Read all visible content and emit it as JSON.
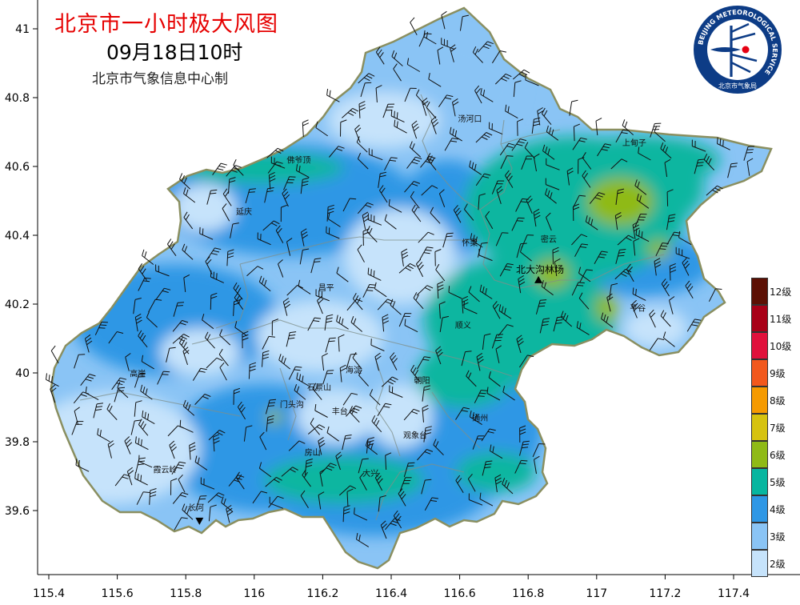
{
  "header": {
    "title": "北京市一小时极大风图",
    "time": "09月18日10时",
    "source": "北京市气象信息中心制"
  },
  "logo": {
    "ring_text": "BEIJING METEOROLOGICAL SERVICE",
    "cn_text": "北京市气象局"
  },
  "colors": {
    "level_2": "#c6e3fb",
    "level_3": "#8ac4f5",
    "level_4": "#2e97e5",
    "level_5": "#07b6a0",
    "level_6": "#8fba16",
    "level_7": "#d6c20f",
    "level_8": "#f59a00",
    "level_9": "#f2581c",
    "level_10": "#e0113c",
    "level_11": "#a80017",
    "level_12": "#5c1004",
    "border": "#8a8f60"
  },
  "legend": [
    {
      "label": "12级",
      "color": "#5c1004"
    },
    {
      "label": "11级",
      "color": "#a80017"
    },
    {
      "label": "10级",
      "color": "#e0113c"
    },
    {
      "label": "9级",
      "color": "#f2581c"
    },
    {
      "label": "8级",
      "color": "#f59a00"
    },
    {
      "label": "7级",
      "color": "#d6c20f"
    },
    {
      "label": "6级",
      "color": "#8fba16"
    },
    {
      "label": "5级",
      "color": "#07b6a0"
    },
    {
      "label": "4级",
      "color": "#2e97e5"
    },
    {
      "label": "3级",
      "color": "#8ac4f5"
    },
    {
      "label": "2级",
      "color": "#c6e3fb"
    }
  ],
  "axes": {
    "x_ticks": [
      "115.4",
      "115.6",
      "115.8",
      "116",
      "116.2",
      "116.4",
      "116.6",
      "116.8",
      "117",
      "117.2",
      "117.4"
    ],
    "y_ticks": [
      "41",
      "40.8",
      "40.6",
      "40.4",
      "40.2",
      "40",
      "39.8",
      "39.6"
    ]
  },
  "places": [
    {
      "name": "汤河口",
      "lon": 116.63,
      "lat": 40.73
    },
    {
      "name": "上甸子",
      "lon": 117.11,
      "lat": 40.66
    },
    {
      "name": "佛爷顶",
      "lon": 116.13,
      "lat": 40.61
    },
    {
      "name": "延庆",
      "lon": 115.97,
      "lat": 40.46
    },
    {
      "name": "密云",
      "lon": 116.86,
      "lat": 40.38
    },
    {
      "name": "怀柔",
      "lon": 116.63,
      "lat": 40.37
    },
    {
      "name": "昌平",
      "lon": 116.21,
      "lat": 40.24
    },
    {
      "name": "平谷",
      "lon": 117.12,
      "lat": 40.18
    },
    {
      "name": "顺义",
      "lon": 116.61,
      "lat": 40.13
    },
    {
      "name": "高崖",
      "lon": 115.66,
      "lat": 39.99
    },
    {
      "name": "海淀",
      "lon": 116.29,
      "lat": 40.0
    },
    {
      "name": "朝阳",
      "lon": 116.49,
      "lat": 39.97
    },
    {
      "name": "石景山",
      "lon": 116.19,
      "lat": 39.95
    },
    {
      "name": "门头沟",
      "lon": 116.11,
      "lat": 39.9
    },
    {
      "name": "丰台",
      "lon": 116.25,
      "lat": 39.88
    },
    {
      "name": "通州",
      "lon": 116.66,
      "lat": 39.86
    },
    {
      "name": "观象台",
      "lon": 116.47,
      "lat": 39.81
    },
    {
      "name": "房山",
      "lon": 116.17,
      "lat": 39.76
    },
    {
      "name": "霞云岭",
      "lon": 115.74,
      "lat": 39.71
    },
    {
      "name": "大兴",
      "lon": 116.34,
      "lat": 39.7
    },
    {
      "name": "长河",
      "lon": 115.83,
      "lat": 39.6
    }
  ],
  "stations": [
    {
      "name": "北大沟林场",
      "lon": 116.83,
      "lat": 40.27,
      "marker": "up"
    },
    {
      "name": "",
      "lon": 115.84,
      "lat": 39.57,
      "marker": "down"
    }
  ]
}
